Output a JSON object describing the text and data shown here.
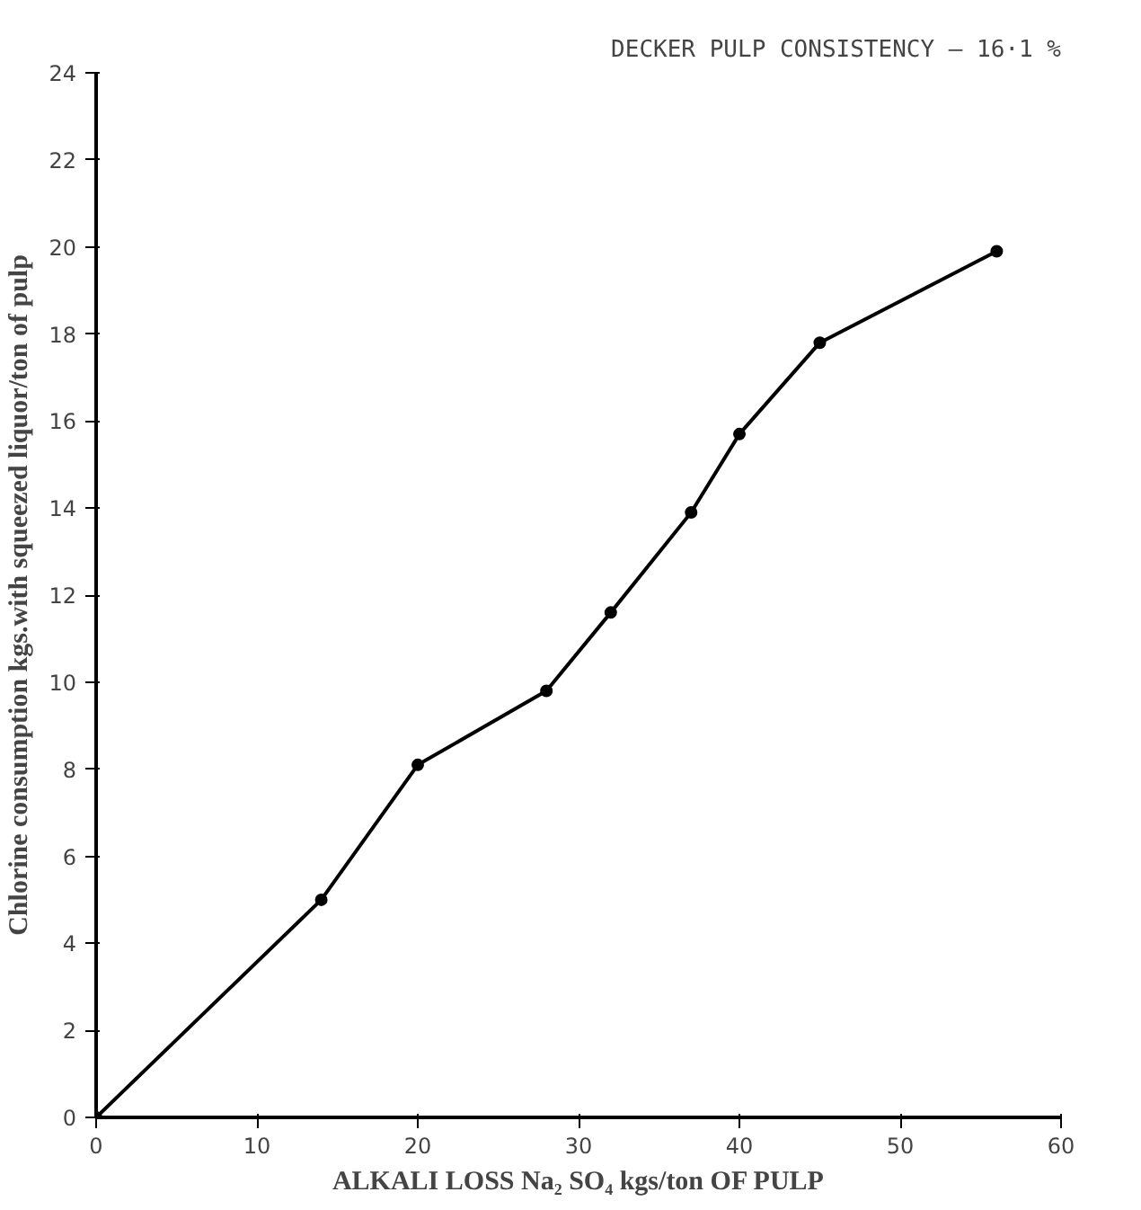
{
  "chart_data": {
    "type": "line",
    "title": "DECKER PULP CONSISTENCY – 16·1 %",
    "xlabel": "ALKALI LOSS Na₂ SO₄ kgs/ton OF PULP",
    "ylabel": "Chlorine consumption kgs.with squeezed liquor/ton of pulp",
    "x": [
      0,
      14,
      20,
      28,
      32,
      37,
      40,
      45,
      56
    ],
    "series": [
      {
        "color": "#000000",
        "values": [
          0,
          5,
          8.1,
          9.8,
          11.6,
          13.9,
          15.7,
          17.8,
          19.9
        ]
      }
    ],
    "xlim": [
      0,
      60
    ],
    "ylim": [
      0,
      24
    ],
    "xticks": [
      0,
      10,
      20,
      30,
      40,
      50,
      60
    ],
    "yticks": [
      0,
      2,
      4,
      6,
      8,
      10,
      12,
      14,
      16,
      18,
      20,
      22,
      24
    ],
    "grid": false,
    "marker": "circle",
    "line_style": "solid"
  }
}
